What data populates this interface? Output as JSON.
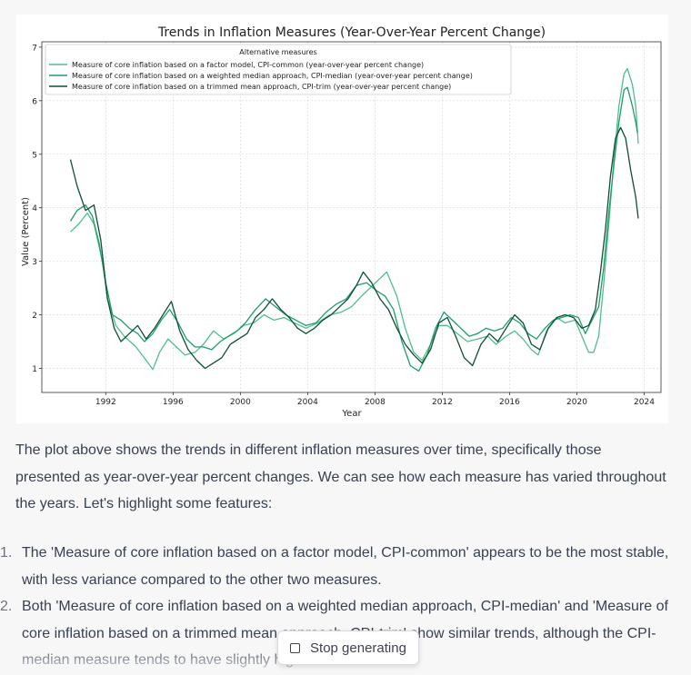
{
  "chart_data": {
    "type": "line",
    "title": "Trends in Inflation Measures (Year-Over-Year Percent Change)",
    "xlabel": "Year",
    "ylabel": "Value (Percent)",
    "xlim": [
      1988.2,
      2025.0
    ],
    "ylim": [
      0.55,
      7.1
    ],
    "xticks": [
      1992,
      1996,
      2000,
      2004,
      2008,
      2012,
      2016,
      2020,
      2024
    ],
    "yticks": [
      1,
      2,
      3,
      4,
      5,
      6,
      7
    ],
    "grid": true,
    "legend": {
      "title": "Alternative measures",
      "placement": "top-left"
    },
    "series": [
      {
        "name": "Measure of core inflation based on a factor model, CPI-common (year-over-year percent change)",
        "color": "#4fbf8c",
        "points": [
          [
            1989.9,
            3.55
          ],
          [
            1990.4,
            3.7
          ],
          [
            1990.9,
            3.9
          ],
          [
            1991.3,
            3.7
          ],
          [
            1991.8,
            3.0
          ],
          [
            1992.1,
            2.3
          ],
          [
            1992.6,
            1.8
          ],
          [
            1993.1,
            1.6
          ],
          [
            1993.8,
            1.4
          ],
          [
            1994.4,
            1.15
          ],
          [
            1994.8,
            0.98
          ],
          [
            1995.2,
            1.3
          ],
          [
            1995.7,
            1.55
          ],
          [
            1996.2,
            1.4
          ],
          [
            1996.7,
            1.25
          ],
          [
            1997.3,
            1.3
          ],
          [
            1997.8,
            1.45
          ],
          [
            1998.4,
            1.7
          ],
          [
            1999.0,
            1.55
          ],
          [
            1999.6,
            1.65
          ],
          [
            2000.2,
            1.8
          ],
          [
            2000.8,
            1.85
          ],
          [
            2001.4,
            2.0
          ],
          [
            2002.0,
            1.9
          ],
          [
            2002.6,
            1.95
          ],
          [
            2003.2,
            1.85
          ],
          [
            2003.9,
            1.75
          ],
          [
            2004.6,
            1.85
          ],
          [
            2005.3,
            2.0
          ],
          [
            2006.0,
            2.05
          ],
          [
            2006.6,
            2.15
          ],
          [
            2007.2,
            2.35
          ],
          [
            2007.7,
            2.5
          ],
          [
            2008.2,
            2.65
          ],
          [
            2008.7,
            2.8
          ],
          [
            2009.3,
            2.35
          ],
          [
            2009.8,
            1.75
          ],
          [
            2010.3,
            1.3
          ],
          [
            2010.8,
            1.15
          ],
          [
            2011.3,
            1.45
          ],
          [
            2011.8,
            1.8
          ],
          [
            2012.3,
            1.8
          ],
          [
            2012.9,
            1.65
          ],
          [
            2013.5,
            1.5
          ],
          [
            2014.1,
            1.55
          ],
          [
            2014.7,
            1.6
          ],
          [
            2015.2,
            1.45
          ],
          [
            2015.8,
            1.6
          ],
          [
            2016.3,
            1.7
          ],
          [
            2016.8,
            1.55
          ],
          [
            2017.3,
            1.35
          ],
          [
            2017.7,
            1.25
          ],
          [
            2018.2,
            1.7
          ],
          [
            2018.8,
            1.95
          ],
          [
            2019.3,
            1.85
          ],
          [
            2019.9,
            1.9
          ],
          [
            2020.3,
            1.6
          ],
          [
            2020.7,
            1.3
          ],
          [
            2021.0,
            1.3
          ],
          [
            2021.3,
            1.6
          ],
          [
            2021.6,
            2.6
          ],
          [
            2021.9,
            3.7
          ],
          [
            2022.2,
            4.9
          ],
          [
            2022.5,
            5.9
          ],
          [
            2022.8,
            6.5
          ],
          [
            2023.0,
            6.6
          ],
          [
            2023.3,
            6.3
          ],
          [
            2023.5,
            5.9
          ],
          [
            2023.65,
            5.2
          ]
        ]
      },
      {
        "name": "Measure of core inflation based on a weighted median approach, CPI-median (year-over-year percent change)",
        "color": "#1f9e6a",
        "points": [
          [
            1989.9,
            3.75
          ],
          [
            1990.3,
            3.95
          ],
          [
            1990.8,
            4.05
          ],
          [
            1991.2,
            3.85
          ],
          [
            1991.6,
            3.35
          ],
          [
            1992.0,
            2.6
          ],
          [
            1992.4,
            2.0
          ],
          [
            1992.9,
            1.9
          ],
          [
            1993.4,
            1.75
          ],
          [
            1993.9,
            1.65
          ],
          [
            1994.3,
            1.5
          ],
          [
            1994.8,
            1.65
          ],
          [
            1995.3,
            1.9
          ],
          [
            1995.8,
            2.1
          ],
          [
            1996.3,
            1.85
          ],
          [
            1996.8,
            1.55
          ],
          [
            1997.3,
            1.4
          ],
          [
            1997.8,
            1.4
          ],
          [
            1998.3,
            1.35
          ],
          [
            1998.8,
            1.5
          ],
          [
            1999.3,
            1.6
          ],
          [
            1999.8,
            1.7
          ],
          [
            2000.3,
            1.85
          ],
          [
            2000.9,
            2.1
          ],
          [
            2001.5,
            2.3
          ],
          [
            2002.1,
            2.15
          ],
          [
            2002.7,
            2.0
          ],
          [
            2003.3,
            1.9
          ],
          [
            2003.9,
            1.8
          ],
          [
            2004.5,
            1.85
          ],
          [
            2005.1,
            2.05
          ],
          [
            2005.7,
            2.2
          ],
          [
            2006.3,
            2.3
          ],
          [
            2006.9,
            2.55
          ],
          [
            2007.5,
            2.6
          ],
          [
            2008.1,
            2.45
          ],
          [
            2008.6,
            2.35
          ],
          [
            2009.1,
            2.1
          ],
          [
            2009.6,
            1.5
          ],
          [
            2010.1,
            1.05
          ],
          [
            2010.6,
            0.95
          ],
          [
            2011.1,
            1.25
          ],
          [
            2011.6,
            1.75
          ],
          [
            2012.1,
            2.05
          ],
          [
            2012.6,
            1.9
          ],
          [
            2013.1,
            1.75
          ],
          [
            2013.6,
            1.6
          ],
          [
            2014.1,
            1.65
          ],
          [
            2014.6,
            1.75
          ],
          [
            2015.1,
            1.7
          ],
          [
            2015.6,
            1.75
          ],
          [
            2016.1,
            1.95
          ],
          [
            2016.6,
            1.85
          ],
          [
            2017.1,
            1.65
          ],
          [
            2017.6,
            1.55
          ],
          [
            2018.1,
            1.75
          ],
          [
            2018.6,
            1.9
          ],
          [
            2019.1,
            1.95
          ],
          [
            2019.6,
            2.0
          ],
          [
            2020.1,
            1.95
          ],
          [
            2020.5,
            1.65
          ],
          [
            2020.9,
            1.9
          ],
          [
            2021.3,
            2.15
          ],
          [
            2021.6,
            2.9
          ],
          [
            2021.9,
            3.9
          ],
          [
            2022.2,
            4.8
          ],
          [
            2022.5,
            5.6
          ],
          [
            2022.8,
            6.2
          ],
          [
            2023.0,
            6.25
          ],
          [
            2023.3,
            5.9
          ],
          [
            2023.5,
            5.6
          ],
          [
            2023.6,
            5.4
          ]
        ]
      },
      {
        "name": "Measure of core inflation based on a trimmed mean approach, CPI-trim (year-over-year percent change)",
        "color": "#0e4f34",
        "points": [
          [
            1989.9,
            4.9
          ],
          [
            1990.3,
            4.4
          ],
          [
            1990.8,
            3.95
          ],
          [
            1991.3,
            4.05
          ],
          [
            1991.7,
            3.4
          ],
          [
            1992.1,
            2.3
          ],
          [
            1992.5,
            1.75
          ],
          [
            1992.9,
            1.5
          ],
          [
            1993.4,
            1.65
          ],
          [
            1993.9,
            1.8
          ],
          [
            1994.4,
            1.55
          ],
          [
            1994.9,
            1.75
          ],
          [
            1995.4,
            2.0
          ],
          [
            1995.9,
            2.25
          ],
          [
            1996.4,
            1.7
          ],
          [
            1996.9,
            1.35
          ],
          [
            1997.4,
            1.15
          ],
          [
            1997.9,
            1.0
          ],
          [
            1998.4,
            1.1
          ],
          [
            1998.9,
            1.2
          ],
          [
            1999.4,
            1.45
          ],
          [
            1999.9,
            1.55
          ],
          [
            2000.4,
            1.65
          ],
          [
            2000.9,
            1.95
          ],
          [
            2001.4,
            2.1
          ],
          [
            2001.9,
            2.3
          ],
          [
            2002.4,
            2.1
          ],
          [
            2002.9,
            1.95
          ],
          [
            2003.4,
            1.75
          ],
          [
            2003.9,
            1.65
          ],
          [
            2004.4,
            1.75
          ],
          [
            2004.9,
            1.9
          ],
          [
            2005.4,
            2.0
          ],
          [
            2005.9,
            2.15
          ],
          [
            2006.4,
            2.3
          ],
          [
            2006.9,
            2.55
          ],
          [
            2007.3,
            2.8
          ],
          [
            2007.8,
            2.6
          ],
          [
            2008.3,
            2.3
          ],
          [
            2008.8,
            2.1
          ],
          [
            2009.3,
            1.75
          ],
          [
            2009.8,
            1.45
          ],
          [
            2010.3,
            1.25
          ],
          [
            2010.8,
            1.1
          ],
          [
            2011.3,
            1.35
          ],
          [
            2011.8,
            1.85
          ],
          [
            2012.3,
            1.95
          ],
          [
            2012.8,
            1.6
          ],
          [
            2013.3,
            1.2
          ],
          [
            2013.8,
            1.05
          ],
          [
            2014.3,
            1.45
          ],
          [
            2014.8,
            1.65
          ],
          [
            2015.3,
            1.5
          ],
          [
            2015.8,
            1.75
          ],
          [
            2016.3,
            2.0
          ],
          [
            2016.8,
            1.85
          ],
          [
            2017.3,
            1.45
          ],
          [
            2017.8,
            1.35
          ],
          [
            2018.3,
            1.75
          ],
          [
            2018.8,
            1.95
          ],
          [
            2019.3,
            2.0
          ],
          [
            2019.8,
            1.95
          ],
          [
            2020.3,
            1.75
          ],
          [
            2020.7,
            1.8
          ],
          [
            2021.1,
            2.1
          ],
          [
            2021.4,
            2.8
          ],
          [
            2021.7,
            3.6
          ],
          [
            2022.0,
            4.6
          ],
          [
            2022.3,
            5.3
          ],
          [
            2022.6,
            5.5
          ],
          [
            2022.9,
            5.3
          ],
          [
            2023.2,
            4.7
          ],
          [
            2023.5,
            4.2
          ],
          [
            2023.65,
            3.8
          ]
        ]
      }
    ]
  },
  "message": {
    "intro": "The plot above shows the trends in different inflation measures over time, specifically those presented as year-over-year percent changes. We can see how each measure has varied throughout the years. Let's highlight some features:",
    "items": [
      {
        "num": "1.",
        "text": "The 'Measure of core inflation based on a factor model, CPI-common' appears to be the most stable, with less variance compared to the other two measures."
      },
      {
        "num": "2.",
        "text": "Both 'Measure of core inflation based on a weighted median approach, CPI-median' and 'Measure of core inflation based on a trimmed mean approach, CPI-trim' show similar trends, although the CPI-median measure tends to have slightly higher values."
      }
    ]
  },
  "controls": {
    "stop_label": "Stop generating"
  }
}
